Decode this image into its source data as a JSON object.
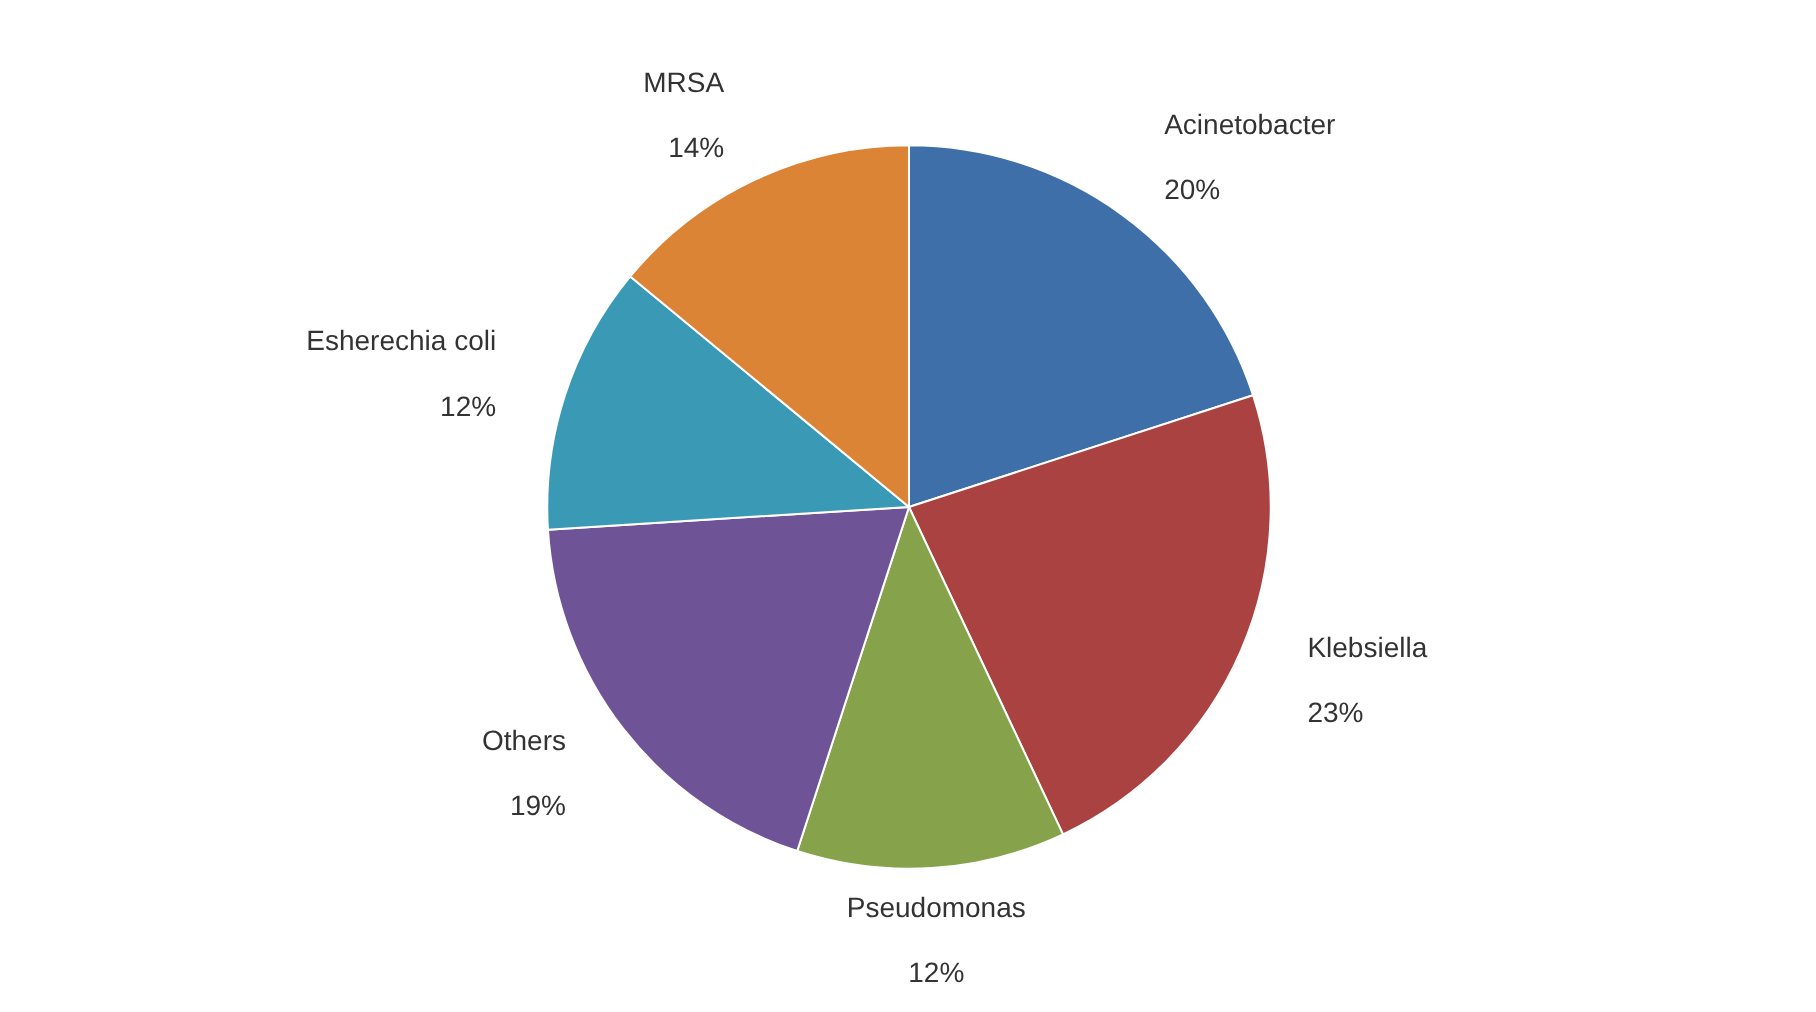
{
  "chart_data": {
    "type": "pie",
    "categories": [
      "Acinetobacter",
      "Klebsiella",
      "Pseudomonas",
      "Others",
      "Esherechia coli",
      "MRSA"
    ],
    "values": [
      20,
      23,
      12,
      19,
      12,
      14
    ],
    "value_labels": [
      "20%",
      "23%",
      "12%",
      "19%",
      "12%",
      "14%"
    ],
    "colors": [
      "#3f6fa8",
      "#a94240",
      "#86a24a",
      "#6e5496",
      "#3a9ab6",
      "#dc8436"
    ]
  }
}
